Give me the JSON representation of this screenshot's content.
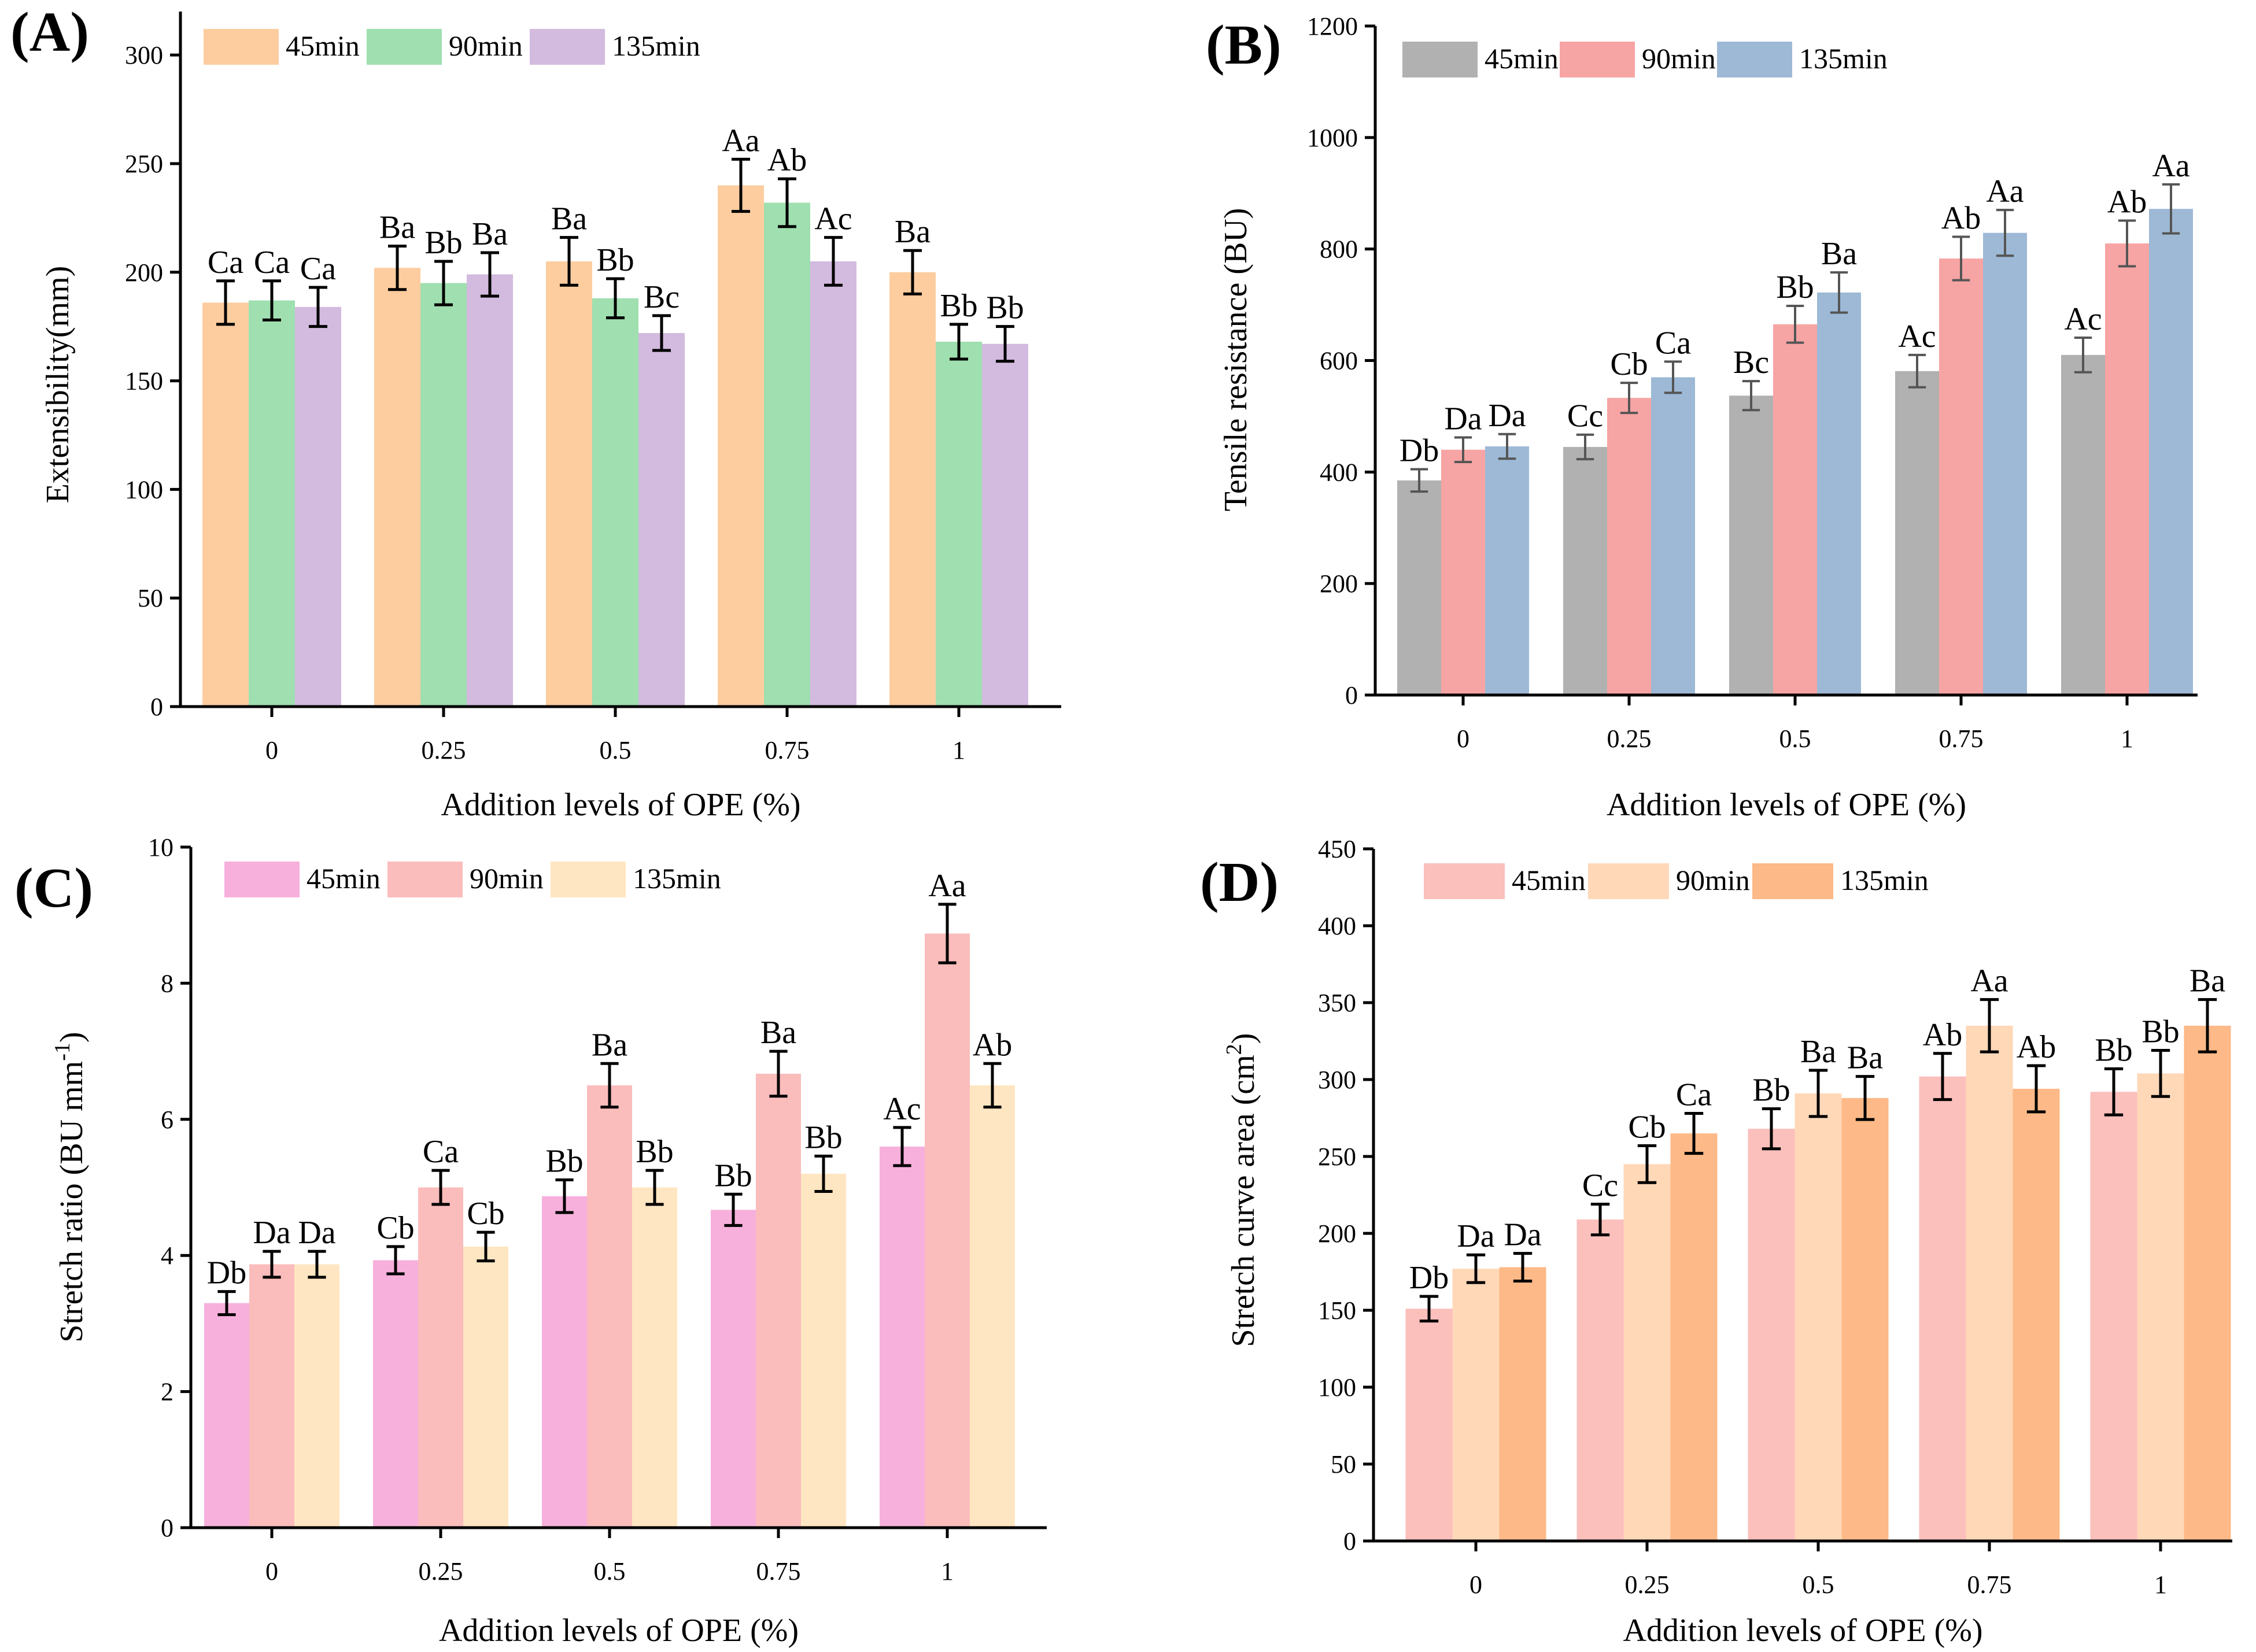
{
  "chart_data": [
    {
      "type": "bar",
      "panel_label": "(A)",
      "categories": [
        "0",
        "0.25",
        "0.5",
        "0.75",
        "1"
      ],
      "xlabel": "Addition levels of OPE (%)",
      "ylabel": "Extensibility(mm)",
      "ylabel_sup": "",
      "ylabel_after": "",
      "ylim": [
        0,
        320
      ],
      "yticks": [
        "0",
        "50",
        "100",
        "150",
        "200",
        "250",
        "300"
      ],
      "legend_position": "top-left",
      "series": [
        {
          "name": "45min",
          "color": "#fdcda0",
          "values": [
            186,
            202,
            205,
            240,
            200
          ],
          "errors": [
            10,
            10,
            11,
            12,
            10
          ],
          "letters": [
            "Ca",
            "Ba",
            "Ba",
            "Aa",
            "Ba"
          ]
        },
        {
          "name": "90min",
          "color": "#9fdfb0",
          "values": [
            187,
            195,
            188,
            232,
            168
          ],
          "errors": [
            9,
            10,
            9,
            11,
            8
          ],
          "letters": [
            "Ca",
            "Bb",
            "Bb",
            "Ab",
            "Bb"
          ]
        },
        {
          "name": "135min",
          "color": "#d3badf",
          "values": [
            184,
            199,
            172,
            205,
            167
          ],
          "errors": [
            9,
            10,
            8,
            11,
            8
          ],
          "letters": [
            "Ca",
            "Ba",
            "Bc",
            "Ac",
            "Bb"
          ]
        }
      ]
    },
    {
      "type": "bar",
      "panel_label": "(B)",
      "categories": [
        "0",
        "0.25",
        "0.5",
        "0.75",
        "1"
      ],
      "xlabel": "Addition levels of OPE (%)",
      "ylabel": "Tensile resistance (BU)",
      "ylabel_sup": "",
      "ylabel_after": "",
      "ylim": [
        0,
        1200
      ],
      "yticks": [
        "0",
        "200",
        "400",
        "600",
        "800",
        "1000",
        "1200"
      ],
      "legend_position": "top-left",
      "series": [
        {
          "name": "45min",
          "color": "#b1b1b1",
          "values": [
            385,
            445,
            537,
            581,
            610
          ],
          "errors": [
            20,
            22,
            26,
            29,
            31
          ],
          "letters": [
            "Db",
            "Cc",
            "Bc",
            "Ac",
            "Ac"
          ]
        },
        {
          "name": "90min",
          "color": "#f7a4a4",
          "values": [
            440,
            533,
            665,
            783,
            810
          ],
          "errors": [
            22,
            27,
            33,
            39,
            41
          ],
          "letters": [
            "Da",
            "Cb",
            "Bb",
            "Ab",
            "Ab"
          ]
        },
        {
          "name": "135min",
          "color": "#9db9d6",
          "values": [
            446,
            570,
            722,
            829,
            872
          ],
          "errors": [
            22,
            28,
            36,
            41,
            44
          ],
          "letters": [
            "Da",
            "Ca",
            "Ba",
            "Aa",
            "Aa"
          ]
        }
      ]
    },
    {
      "type": "bar",
      "panel_label": "(C)",
      "categories": [
        "0",
        "0.25",
        "0.5",
        "0.75",
        "1"
      ],
      "xlabel": "Addition levels of OPE (%)",
      "ylabel": "Stretch ratio (BU mm",
      "ylabel_sup": "-1",
      "ylabel_after": ")",
      "ylim": [
        0,
        10
      ],
      "yticks": [
        "0",
        "2",
        "4",
        "6",
        "8",
        "10"
      ],
      "legend_position": "top-left",
      "series": [
        {
          "name": "45min",
          "color": "#f7b0dc",
          "values": [
            3.3,
            3.93,
            4.87,
            4.67,
            5.6
          ],
          "errors": [
            0.17,
            0.2,
            0.24,
            0.23,
            0.28
          ],
          "letters": [
            "Db",
            "Cb",
            "Bb",
            "Bb",
            "Ac"
          ]
        },
        {
          "name": "90min",
          "color": "#fbbcbc",
          "values": [
            3.87,
            5.0,
            6.5,
            6.67,
            8.73
          ],
          "errors": [
            0.19,
            0.25,
            0.32,
            0.33,
            0.43
          ],
          "letters": [
            "Da",
            "Ca",
            "Ba",
            "Ba",
            "Aa"
          ]
        },
        {
          "name": "135min",
          "color": "#ffe6c2",
          "values": [
            3.87,
            4.13,
            5.0,
            5.2,
            6.5
          ],
          "errors": [
            0.19,
            0.21,
            0.25,
            0.26,
            0.32
          ],
          "letters": [
            "Da",
            "Cb",
            "Bb",
            "Bb",
            "Ab"
          ]
        }
      ]
    },
    {
      "type": "bar",
      "panel_label": "(D)",
      "categories": [
        "0",
        "0.25",
        "0.5",
        "0.75",
        "1"
      ],
      "xlabel": "Addition levels of OPE (%)",
      "ylabel": "Stretch curve area (cm",
      "ylabel_sup": "2",
      "ylabel_after": ")",
      "ylim": [
        0,
        450
      ],
      "yticks": [
        "0",
        "50",
        "100",
        "150",
        "200",
        "250",
        "300",
        "350",
        "400",
        "450"
      ],
      "legend_position": "top-left",
      "series": [
        {
          "name": "45min",
          "color": "#fbbfbc",
          "values": [
            151,
            209,
            268,
            302,
            292
          ],
          "errors": [
            8,
            10,
            13,
            15,
            15
          ],
          "letters": [
            "Db",
            "Cc",
            "Bb",
            "Ab",
            "Bb"
          ]
        },
        {
          "name": "90min",
          "color": "#ffd8b8",
          "values": [
            177,
            245,
            291,
            335,
            304
          ],
          "errors": [
            9,
            12,
            15,
            17,
            15
          ],
          "letters": [
            "Da",
            "Cb",
            "Ba",
            "Aa",
            "Bb"
          ]
        },
        {
          "name": "135min",
          "color": "#fdb987",
          "values": [
            178,
            265,
            288,
            294,
            335
          ],
          "errors": [
            9,
            13,
            14,
            15,
            17
          ],
          "letters": [
            "Da",
            "Ca",
            "Ba",
            "Ab",
            "Ba"
          ]
        }
      ]
    }
  ]
}
